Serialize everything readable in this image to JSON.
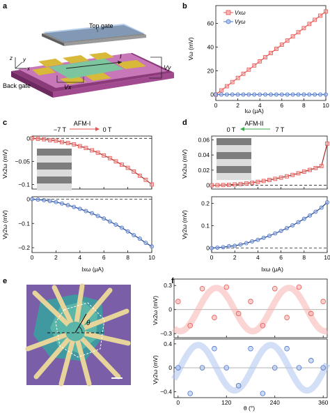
{
  "panels": {
    "a": {
      "label": "a",
      "top_gate": "Top gate",
      "back_gate": "Back gate",
      "axis_z": "z",
      "axis_y": "y",
      "axis_x": "x",
      "v_x": "Vx",
      "v_y": "Vy",
      "current": "I"
    },
    "b": {
      "label": "b",
      "ylabel": "Vω (mV)",
      "xlabel": "Iω (μA)",
      "legend": [
        "Vxω",
        "Vyω"
      ]
    },
    "c": {
      "label": "c",
      "arrow_left": "−7 T",
      "arrow_title": "AFM-I",
      "arrow_right": "0 T",
      "ylabel_top": "Vx2ω (mV)",
      "ylabel_bottom": "Vy2ω (mV)",
      "xlabel": "Ixω (μA)"
    },
    "d": {
      "label": "d",
      "arrow_left": "0 T",
      "arrow_title": "AFM-II",
      "arrow_right": "7 T",
      "ylabel_top": "Vx2ω (mV)",
      "ylabel_bottom": "Vy2ω (mV)",
      "xlabel": "Ixω (μA)"
    },
    "e": {
      "label": "e",
      "theta": "θ"
    },
    "f": {
      "label": "f",
      "ylabel_top": "Vx2ω (mV)",
      "ylabel_bottom": "Vy2ω (mV)",
      "xlabel": "θ (°)"
    }
  },
  "colors": {
    "red": "#e8534f",
    "blue": "#4a72c8",
    "red_fill": "#f7b3b1",
    "blue_fill": "#aec4ef"
  },
  "chart_data": [
    {
      "id": "b",
      "type": "scatter",
      "x": [
        0,
        0.5,
        1,
        1.5,
        2,
        2.5,
        3,
        3.5,
        4,
        4.5,
        5,
        5.5,
        6,
        6.5,
        7,
        7.5,
        8,
        8.5,
        9,
        9.5,
        10
      ],
      "series": [
        {
          "name": "Vxω",
          "values": [
            0,
            3.5,
            7,
            10.5,
            14,
            17.5,
            21,
            24.5,
            28,
            31.5,
            35,
            38.5,
            42,
            45.5,
            49,
            52.5,
            56,
            59.5,
            63,
            66.5,
            70
          ]
        },
        {
          "name": "Vyω",
          "values": [
            0,
            0,
            0,
            0,
            0,
            0,
            0,
            0,
            0,
            0,
            0,
            0,
            0,
            0,
            0,
            0,
            0,
            0,
            0,
            0,
            0
          ]
        }
      ],
      "xlim": [
        0,
        10
      ],
      "ylim": [
        -5,
        75
      ],
      "xticks": [
        0,
        2,
        4,
        6,
        8,
        10
      ],
      "yticks": [
        0,
        20,
        40,
        60
      ]
    },
    {
      "id": "c_top",
      "type": "scatter",
      "x": [
        0,
        0.5,
        1,
        1.5,
        2,
        2.5,
        3,
        3.5,
        4,
        4.5,
        5,
        5.5,
        6,
        6.5,
        7,
        7.5,
        8,
        8.5,
        9,
        9.5,
        10
      ],
      "values": [
        0,
        -0.001,
        -0.002,
        -0.004,
        -0.005,
        -0.008,
        -0.01,
        -0.013,
        -0.017,
        -0.021,
        -0.026,
        -0.031,
        -0.037,
        -0.043,
        -0.05,
        -0.057,
        -0.064,
        -0.072,
        -0.081,
        -0.09,
        -0.1
      ],
      "xlim": [
        0,
        10
      ],
      "ylim": [
        -0.11,
        0.005
      ],
      "yticks": [
        0,
        -0.05,
        -0.1
      ]
    },
    {
      "id": "c_bottom",
      "type": "scatter",
      "x": [
        0,
        0.5,
        1,
        1.5,
        2,
        2.5,
        3,
        3.5,
        4,
        4.5,
        5,
        5.5,
        6,
        6.5,
        7,
        7.5,
        8,
        8.5,
        9,
        9.5,
        10
      ],
      "values": [
        0,
        -0.002,
        -0.004,
        -0.008,
        -0.012,
        -0.018,
        -0.025,
        -0.032,
        -0.04,
        -0.049,
        -0.058,
        -0.069,
        -0.08,
        -0.092,
        -0.105,
        -0.118,
        -0.133,
        -0.148,
        -0.163,
        -0.18,
        -0.195
      ],
      "xlim": [
        0,
        10
      ],
      "ylim": [
        -0.22,
        0.01
      ],
      "yticks": [
        0,
        -0.1,
        -0.2
      ],
      "xticks": [
        0,
        2,
        4,
        6,
        8,
        10
      ]
    },
    {
      "id": "d_top",
      "type": "scatter",
      "x": [
        0,
        0.5,
        1,
        1.5,
        2,
        2.5,
        3,
        3.5,
        4,
        4.5,
        5,
        5.5,
        6,
        6.5,
        7,
        7.5,
        8,
        8.5,
        9,
        9.5,
        10
      ],
      "values": [
        0,
        0.0001,
        0.0003,
        0.0006,
        0.0011,
        0.0017,
        0.0025,
        0.0034,
        0.0045,
        0.0057,
        0.007,
        0.0085,
        0.0101,
        0.0118,
        0.0137,
        0.0158,
        0.018,
        0.0203,
        0.0228,
        0.0254,
        0.055
      ],
      "xlim": [
        0,
        10
      ],
      "ylim": [
        -0.005,
        0.065
      ],
      "yticks": [
        0,
        0.02,
        0.04,
        0.06
      ]
    },
    {
      "id": "d_bottom",
      "type": "scatter",
      "x": [
        0,
        0.5,
        1,
        1.5,
        2,
        2.5,
        3,
        3.5,
        4,
        4.5,
        5,
        5.5,
        6,
        6.5,
        7,
        7.5,
        8,
        8.5,
        9,
        9.5,
        10
      ],
      "values": [
        0,
        0.002,
        0.004,
        0.008,
        0.01,
        0.016,
        0.022,
        0.03,
        0.037,
        0.046,
        0.055,
        0.066,
        0.077,
        0.089,
        0.102,
        0.116,
        0.131,
        0.146,
        0.163,
        0.181,
        0.205
      ],
      "xlim": [
        0,
        10
      ],
      "ylim": [
        -0.02,
        0.23
      ],
      "yticks": [
        0,
        0.1,
        0.2
      ],
      "xticks": [
        0,
        2,
        4,
        6,
        8,
        10
      ]
    },
    {
      "id": "f_top",
      "type": "scatter",
      "x": [
        0,
        30,
        60,
        90,
        120,
        150,
        180,
        210,
        240,
        270,
        300,
        330,
        360
      ],
      "values": [
        0.1,
        -0.2,
        0.26,
        -0.1,
        0.28,
        -0.05,
        0.1,
        -0.2,
        0.26,
        -0.1,
        0.28,
        -0.05,
        0.1
      ],
      "xlim": [
        -10,
        370
      ],
      "ylim": [
        -0.35,
        0.38
      ],
      "yticks": [
        0.3,
        0,
        -0.3
      ]
    },
    {
      "id": "f_bottom",
      "type": "scatter",
      "x": [
        0,
        30,
        60,
        90,
        120,
        150,
        180,
        210,
        240,
        270,
        300,
        330,
        360
      ],
      "values": [
        0,
        -0.43,
        0,
        0.32,
        0,
        -0.3,
        0.32,
        -0.43,
        0,
        0.32,
        0,
        0.12,
        0
      ],
      "xlim": [
        -10,
        370
      ],
      "ylim": [
        -0.5,
        0.48
      ],
      "yticks": [
        0.4,
        0,
        -0.4
      ],
      "xticks": [
        0,
        120,
        240,
        360
      ]
    }
  ]
}
